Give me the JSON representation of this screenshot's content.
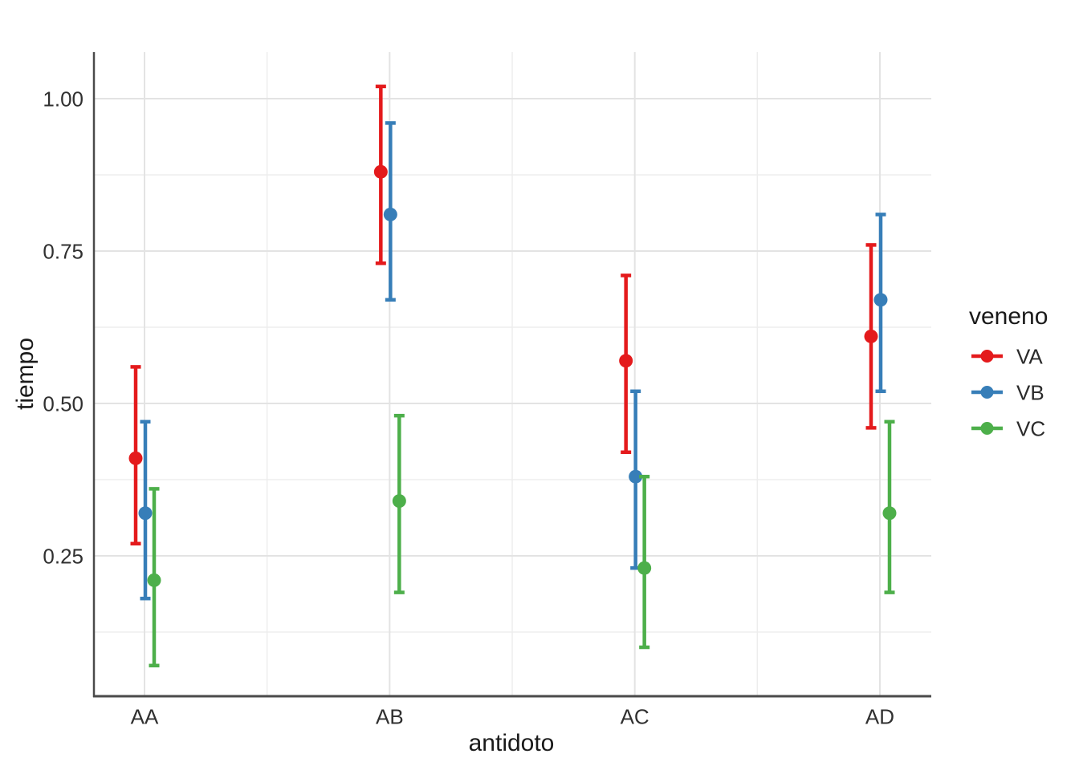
{
  "chart_data": {
    "type": "scatter",
    "subtype": "pointrange-dodged",
    "title": "",
    "xlabel": "antidoto",
    "ylabel": "tiempo",
    "legend_title": "veneno",
    "legend_position": "right",
    "categories": [
      "AA",
      "AB",
      "AC",
      "AD"
    ],
    "series": [
      {
        "name": "VA",
        "color": "#E41A1C",
        "mean": [
          0.41,
          0.88,
          0.57,
          0.61
        ],
        "lower": [
          0.27,
          0.73,
          0.42,
          0.46
        ],
        "upper": [
          0.56,
          1.02,
          0.71,
          0.76
        ]
      },
      {
        "name": "VB",
        "color": "#377EB8",
        "mean": [
          0.32,
          0.81,
          0.38,
          0.67
        ],
        "lower": [
          0.18,
          0.67,
          0.23,
          0.52
        ],
        "upper": [
          0.47,
          0.96,
          0.52,
          0.81
        ]
      },
      {
        "name": "VC",
        "color": "#4DAF4A",
        "mean": [
          0.21,
          0.34,
          0.23,
          0.32
        ],
        "lower": [
          0.07,
          0.19,
          0.1,
          0.19
        ],
        "upper": [
          0.36,
          0.48,
          0.38,
          0.47
        ]
      }
    ],
    "y_axis": {
      "ticks": [
        1.0,
        0.75,
        0.5,
        0.25
      ],
      "tick_labels": [
        "1.00",
        "0.75",
        "0.50",
        "0.25"
      ],
      "minor_ticks": [
        0.875,
        0.625,
        0.375,
        0.125
      ],
      "range": [
        0.02,
        1.08
      ]
    },
    "grid": {
      "show": true
    }
  }
}
